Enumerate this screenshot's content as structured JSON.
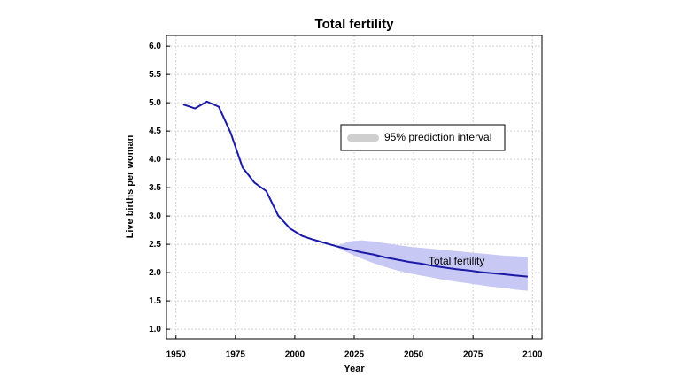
{
  "chart_data": {
    "type": "line",
    "title": "Total fertility",
    "x_label": "Year",
    "y_label": "Live births per woman",
    "xlim": [
      1946,
      2104
    ],
    "xticks": [
      1950,
      1975,
      2000,
      2025,
      2050,
      2075,
      2100
    ],
    "ylim": [
      0.83,
      6.19
    ],
    "yticks": [
      {
        "value": 1,
        "label": "1.0"
      },
      1.5,
      {
        "value": 2,
        "label": "2.0"
      },
      2.5,
      {
        "value": 3,
        "label": "3.0"
      },
      3.5,
      {
        "value": 4,
        "label": "4.0"
      },
      4.5,
      {
        "value": 5,
        "label": "5.0"
      },
      5.5,
      {
        "value": 6,
        "label": "6.0"
      }
    ],
    "grid": true,
    "series": [
      {
        "name": "Total fertility",
        "color": "#1a1aa6",
        "x": [
          1953,
          1958,
          1963,
          1968,
          1973,
          1978,
          1983,
          1988,
          1993,
          1998,
          2003,
          2008,
          2013,
          2018,
          2023,
          2028,
          2033,
          2038,
          2043,
          2048,
          2053,
          2058,
          2063,
          2068,
          2073,
          2078,
          2083,
          2088,
          2093,
          2098
        ],
        "values": [
          4.97,
          4.9,
          5.02,
          4.93,
          4.47,
          3.86,
          3.59,
          3.44,
          3.01,
          2.78,
          2.65,
          2.58,
          2.52,
          2.46,
          2.41,
          2.36,
          2.32,
          2.27,
          2.23,
          2.19,
          2.16,
          2.12,
          2.09,
          2.06,
          2.04,
          2.01,
          1.99,
          1.97,
          1.95,
          1.93
        ]
      }
    ],
    "interval": {
      "name": "95% prediction interval",
      "color": "#c8c8f4",
      "legend_color": "#cfcfcf",
      "x": [
        2018,
        2023,
        2028,
        2033,
        2038,
        2043,
        2048,
        2053,
        2058,
        2063,
        2068,
        2073,
        2078,
        2083,
        2088,
        2093,
        2098
      ],
      "upper": [
        2.48,
        2.55,
        2.57,
        2.55,
        2.52,
        2.49,
        2.46,
        2.44,
        2.42,
        2.4,
        2.38,
        2.36,
        2.34,
        2.32,
        2.3,
        2.29,
        2.28
      ],
      "lower": [
        2.44,
        2.34,
        2.25,
        2.17,
        2.1,
        2.04,
        1.99,
        1.95,
        1.91,
        1.87,
        1.84,
        1.81,
        1.78,
        1.75,
        1.73,
        1.7,
        1.68
      ]
    }
  }
}
